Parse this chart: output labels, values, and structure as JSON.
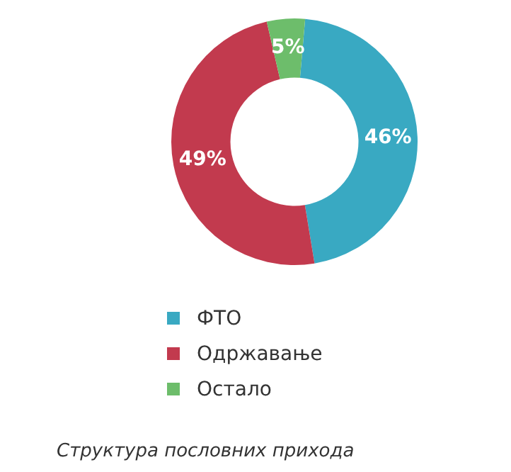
{
  "chart_data": {
    "type": "donut",
    "categories": [
      "ФТО",
      "Одржавање",
      "Остало"
    ],
    "values": [
      46,
      49,
      5
    ],
    "colors": [
      "#39a9c2",
      "#c23a4e",
      "#6dbd6b"
    ],
    "value_labels": [
      "46%",
      "49%",
      "5%"
    ],
    "legend": "bottom",
    "annotations": [
      "Структура пословних прихода"
    ]
  }
}
